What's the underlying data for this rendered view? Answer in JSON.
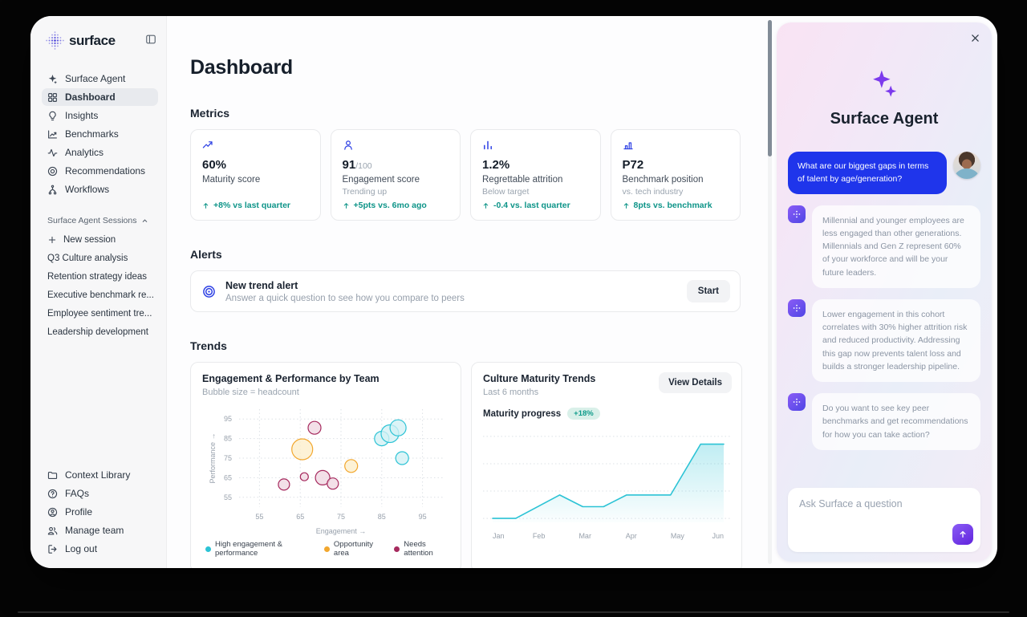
{
  "colors": {
    "accent_blue": "#2c3fe4",
    "positive_green": "#0d9488",
    "cyan": "#2cc3d5",
    "amber": "#f2a72e",
    "maroon": "#a62a5e",
    "purple": "#7c3aed",
    "user_bubble_blue": "#1f35eb"
  },
  "sidebar": {
    "logo_text": "surface",
    "nav": [
      {
        "icon": "sparkles-icon",
        "label": "Surface Agent",
        "active": false
      },
      {
        "icon": "grid-icon",
        "label": "Dashboard",
        "active": true
      },
      {
        "icon": "lightbulb-icon",
        "label": "Insights",
        "active": false
      },
      {
        "icon": "chart-line-icon",
        "label": "Benchmarks",
        "active": false
      },
      {
        "icon": "activity-icon",
        "label": "Analytics",
        "active": false
      },
      {
        "icon": "target-icon",
        "label": "Recommendations",
        "active": false
      },
      {
        "icon": "workflow-icon",
        "label": "Workflows",
        "active": false
      }
    ],
    "sessions_label": "Surface Agent Sessions",
    "sessions": [
      {
        "icon": "plus-icon",
        "label": "New session"
      },
      {
        "icon": null,
        "label": "Q3 Culture analysis"
      },
      {
        "icon": null,
        "label": "Retention strategy ideas"
      },
      {
        "icon": null,
        "label": "Executive benchmark re..."
      },
      {
        "icon": null,
        "label": "Employee sentiment tre..."
      },
      {
        "icon": null,
        "label": "Leadership development"
      }
    ],
    "footer": [
      {
        "icon": "folder-icon",
        "label": "Context Library"
      },
      {
        "icon": "help-icon",
        "label": "FAQs"
      },
      {
        "icon": "user-circle-icon",
        "label": "Profile"
      },
      {
        "icon": "users-icon",
        "label": "Manage team"
      },
      {
        "icon": "logout-icon",
        "label": "Log out"
      }
    ]
  },
  "main": {
    "title": "Dashboard",
    "metrics_heading": "Metrics",
    "metrics": [
      {
        "icon": "trending-up-icon",
        "value": "60%",
        "suffix": "",
        "label": "Maturity score",
        "note": "",
        "delta": "+8% vs last quarter"
      },
      {
        "icon": "person-icon",
        "value": "91",
        "suffix": "/100",
        "label": "Engagement score",
        "note": "Trending up",
        "delta": "+5pts vs. 6mo ago"
      },
      {
        "icon": "bar-chart-icon",
        "value": "1.2%",
        "suffix": "",
        "label": "Regrettable attrition",
        "note": "Below target",
        "delta": "-0.4 vs. last quarter"
      },
      {
        "icon": "benchmark-bars-icon",
        "value": "P72",
        "suffix": "",
        "label": "Benchmark position",
        "note": "vs. tech industry",
        "delta": "8pts vs. benchmark"
      }
    ],
    "alerts_heading": "Alerts",
    "alert": {
      "icon": "target-rings-icon",
      "title": "New trend alert",
      "description": "Answer a quick question to see how you compare to peers",
      "button_label": "Start"
    },
    "trends_heading": "Trends",
    "view_details_label": "View Details"
  },
  "chart_data": [
    {
      "type": "scatter",
      "title": "Engagement & Performance by Team",
      "subtitle": "Bubble size = headcount",
      "xlabel": "Engagement →",
      "ylabel": "Performance →",
      "xticks": [
        55,
        65,
        75,
        85,
        95
      ],
      "yticks": [
        55,
        65,
        75,
        85,
        95
      ],
      "xlim": [
        50,
        100
      ],
      "ylim": [
        50,
        100
      ],
      "series": [
        {
          "name": "High engagement & performance",
          "color": "#2cc3d5",
          "fill": "#d2f1f5",
          "points": [
            {
              "x": 85,
              "y": 85,
              "r": 9
            },
            {
              "x": 87,
              "y": 87.5,
              "r": 11
            },
            {
              "x": 89,
              "y": 90.5,
              "r": 10
            },
            {
              "x": 90,
              "y": 75,
              "r": 8
            }
          ]
        },
        {
          "name": "Opportunity area",
          "color": "#f2a72e",
          "fill": "#fdeecb",
          "points": [
            {
              "x": 65.5,
              "y": 79.5,
              "r": 13
            },
            {
              "x": 77.5,
              "y": 71,
              "r": 8
            }
          ]
        },
        {
          "name": "Needs attention",
          "color": "#a62a5e",
          "fill": "#f0d7e2",
          "points": [
            {
              "x": 68.5,
              "y": 90.5,
              "r": 8
            },
            {
              "x": 66,
              "y": 65.5,
              "r": 5
            },
            {
              "x": 70.5,
              "y": 65,
              "r": 9
            },
            {
              "x": 73,
              "y": 62,
              "r": 7
            },
            {
              "x": 61,
              "y": 61.5,
              "r": 7
            }
          ]
        }
      ]
    },
    {
      "type": "area",
      "title": "Culture Maturity Trends",
      "subtitle": "Last 6 months",
      "progress_label": "Maturity progress",
      "progress_badge": "+18%",
      "categories": [
        "Jan",
        "Feb",
        "Mar",
        "Apr",
        "May",
        "Jun"
      ],
      "points": [
        [
          0,
          41
        ],
        [
          0.5,
          41
        ],
        [
          1.45,
          47
        ],
        [
          1.95,
          44
        ],
        [
          2.4,
          44
        ],
        [
          2.9,
          47
        ],
        [
          3.85,
          47
        ],
        [
          4.5,
          60
        ],
        [
          5,
          60
        ]
      ],
      "ylim": [
        40,
        63
      ],
      "gridlines": [
        41,
        48,
        55,
        62
      ],
      "line_color": "#2cc3d5"
    }
  ],
  "chat": {
    "title": "Surface Agent",
    "user_message": "What are our biggest gaps in terms of talent by age/generation?",
    "agent_messages": [
      "Millennial and younger employees are less engaged than other generations. Millennials and Gen Z represent 60% of your workforce and will be your future leaders.",
      "Lower engagement in this cohort correlates with 30% higher attrition risk and reduced productivity. Addressing this gap now prevents talent loss and builds a stronger leadership pipeline.",
      "Do you want to see key peer benchmarks and get recommendations for how you can take action?"
    ],
    "input_placeholder": "Ask Surface a question"
  }
}
